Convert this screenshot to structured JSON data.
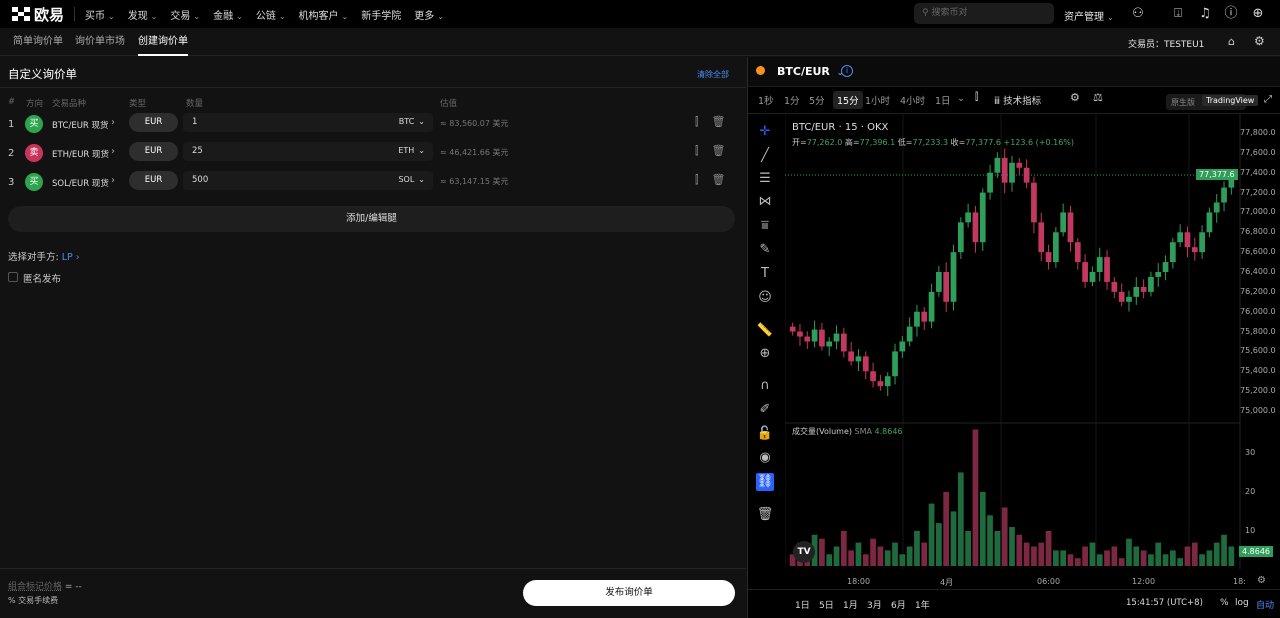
{
  "topnav": {
    "logo": "欧易",
    "items": [
      "买币",
      "发现",
      "交易",
      "金融",
      "公链",
      "机构客户",
      "新手学院",
      "更多"
    ],
    "has_chevron": [
      true,
      true,
      true,
      true,
      true,
      true,
      false,
      true
    ],
    "search_placeholder": "搜索币对",
    "asset_mgmt": "资产管理"
  },
  "subnav": {
    "tabs": [
      "简单询价单",
      "询价单市场",
      "创建询价单"
    ],
    "active": 2,
    "trader_label": "交易员：",
    "trader": "TESTEU1"
  },
  "rfq": {
    "title": "自定义询价单",
    "clear_all": "清除全部",
    "columns": [
      "#",
      "方向",
      "交易品种",
      "类型",
      "数量",
      "估值"
    ],
    "legs": [
      {
        "n": "1",
        "side": "买",
        "side_color": "#2ea44f",
        "instrument": "BTC/EUR 现货",
        "type": "EUR",
        "qty": "1",
        "unit": "BTC",
        "est": "≈ 83,560.07 美元"
      },
      {
        "n": "2",
        "side": "卖",
        "side_color": "#c9355a",
        "instrument": "ETH/EUR 现货",
        "type": "EUR",
        "qty": "25",
        "unit": "ETH",
        "est": "≈ 46,421.66 美元"
      },
      {
        "n": "3",
        "side": "买",
        "side_color": "#2ea44f",
        "instrument": "SOL/EUR 现货",
        "type": "EUR",
        "qty": "500",
        "unit": "SOL",
        "est": "≈ 63,147.15 美元"
      }
    ],
    "add_leg": "添加/编辑腿",
    "counterparty_label": "选择对手方:",
    "counterparty_value": "LP",
    "anonymous": "匿名发布",
    "mark_price_label": "组合标记价格",
    "mark_price_value": "= --",
    "fee_label": "% 交易手续费",
    "publish": "发布询价单"
  },
  "chart": {
    "symbol": "BTC/EUR",
    "timeframes": [
      "1秒",
      "1分",
      "5分",
      "15分",
      "1小时",
      "4小时",
      "1日"
    ],
    "active_tf": "15分",
    "indicators": "技术指标",
    "native": "原生版",
    "tradingview": "TradingView",
    "legend_title": "BTC/EUR · 15 · OKX",
    "ohlc": {
      "open_label": "开=",
      "open": "77,262.0",
      "high_label": "高=",
      "high": "77,396.1",
      "low_label": "低=",
      "low": "77,233.3",
      "close_label": "收=",
      "close": "77,377.6",
      "change": "+123.6 (+0.16%)"
    },
    "price_ticks": [
      "77,800.0",
      "77,600.0",
      "77,400.0",
      "77,200.0",
      "77,000.0",
      "76,800.0",
      "76,600.0",
      "76,400.0",
      "76,200.0",
      "76,000.0",
      "75,800.0",
      "75,600.0",
      "75,400.0",
      "75,200.0",
      "75,000.0"
    ],
    "last_price": "77,377.6",
    "volume_label": "成交量(Volume)",
    "sma_label": "SMA",
    "sma_value": "4.8646",
    "volume_ticks": [
      "30",
      "20",
      "10"
    ],
    "time_ticks": [
      "18:00",
      "4月",
      "06:00",
      "12:00",
      "18:"
    ],
    "ranges": [
      "1日",
      "5日",
      "1月",
      "3月",
      "6月",
      "1年"
    ],
    "clock": "15:41:57 (UTC+8)",
    "pct": "%",
    "log": "log",
    "auto": "自动",
    "up_color": "#2e9e5a",
    "down_color": "#c2385f"
  },
  "chart_data": {
    "type": "candlestick",
    "ylim": [
      75000,
      77800
    ],
    "closes": [
      75800,
      75750,
      75700,
      75820,
      75650,
      75700,
      75780,
      75600,
      75500,
      75550,
      75400,
      75300,
      75250,
      75350,
      75600,
      75700,
      75850,
      76000,
      75900,
      76200,
      76400,
      76100,
      76600,
      76900,
      77000,
      76700,
      77200,
      77400,
      77550,
      77300,
      77500,
      77450,
      77300,
      76900,
      76600,
      76500,
      76800,
      77000,
      76700,
      76500,
      76300,
      76400,
      76550,
      76300,
      76200,
      76100,
      76150,
      76250,
      76200,
      76350,
      76400,
      76500,
      76700,
      76800,
      76650,
      76600,
      76800,
      77000,
      77100,
      77250,
      77377.6
    ],
    "volumes": [
      3,
      6,
      4,
      8,
      7,
      3,
      5,
      9,
      4,
      6,
      3,
      7,
      5,
      4,
      6,
      3,
      5,
      9,
      6,
      16,
      11,
      19,
      14,
      24,
      9,
      35,
      19,
      13,
      9,
      15,
      10,
      8,
      6,
      5,
      6,
      9,
      4,
      4,
      3,
      2,
      5,
      6,
      3,
      4,
      5,
      2,
      7,
      5,
      4,
      3,
      6,
      3,
      4,
      2,
      5,
      6,
      3,
      4,
      6,
      8,
      5
    ]
  }
}
